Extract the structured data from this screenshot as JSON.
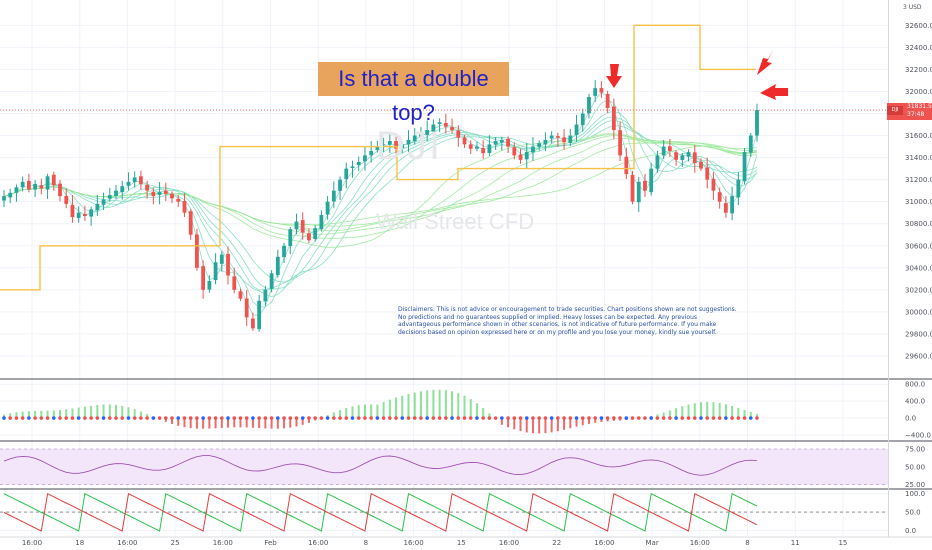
{
  "annotation": {
    "headline": "Is that a double top?"
  },
  "watermark": {
    "symbol": "DJI",
    "name": "Wall Street CFD"
  },
  "currency_label": "3 USD",
  "last_price": {
    "symbol": "DJI",
    "value": "31831.5",
    "countdown": "37:48",
    "color": "#ef5350"
  },
  "disclaimer": "Disclaimers: This is not advice or encouragement to trade securities. Chart positions shown are not suggestions. No predictions and no guarantees supplied or implied. Heavy losses can be expected. Any previous advantageous performance shown in other scenarios, is not indicative of future performance.  If you make decisions based on opinion expressed here or on my profile and you lose your money, kindly sue yourself.",
  "colors": {
    "up": "#26a69a",
    "down": "#ef5350",
    "step_line": "#f7c046",
    "callout_bg": "#e8a35c",
    "callout_text": "#1f23c8",
    "arrow": "#ef2a2a",
    "rsi_band": "#f3e6fb",
    "rsi_line": "#a052b0"
  },
  "chart_data": [
    {
      "type": "candlestick",
      "name": "price",
      "y_ticks": [
        29600,
        29800,
        30000,
        30200,
        30400,
        30600,
        30800,
        31000,
        31200,
        31400,
        31600,
        31800,
        32000,
        32200,
        32400,
        32600
      ],
      "y_tick_labels": [
        "29600.0",
        "29800.0",
        "30000.0",
        "30200.0",
        "30400.0",
        "30600.0",
        "30800.0",
        "31000.0",
        "31200.0",
        "31400.0",
        "31600.0",
        "31800.0",
        "32000.0",
        "32200.0",
        "32400.0",
        "32600.0"
      ],
      "ylim": [
        29400,
        32830
      ],
      "x_tick_labels": [
        "16:00",
        "18",
        "16:00",
        "25",
        "16:00",
        "Feb",
        "16:00",
        "8",
        "16:00",
        "15",
        "16:00",
        "22",
        "16:00",
        "Mar",
        "16:00",
        "8",
        "11",
        "15"
      ],
      "close_path": [
        31050,
        31080,
        31130,
        31180,
        31110,
        31160,
        31120,
        31230,
        31150,
        31050,
        30980,
        30860,
        30900,
        30870,
        30930,
        30980,
        31020,
        31060,
        31100,
        31140,
        31180,
        31220,
        31160,
        31100,
        31050,
        31090,
        31070,
        31030,
        31000,
        30900,
        30700,
        30400,
        30200,
        30280,
        30450,
        30520,
        30330,
        30200,
        30120,
        29950,
        29850,
        30100,
        30200,
        30350,
        30500,
        30600,
        30750,
        30820,
        30720,
        30650,
        30760,
        30880,
        31000,
        31100,
        31200,
        31300,
        31320,
        31360,
        31420,
        31460,
        31500,
        31520,
        31550,
        31480,
        31520,
        31560,
        31600,
        31620,
        31650,
        31700,
        31720,
        31680,
        31650,
        31580,
        31520,
        31480,
        31500,
        31440,
        31520,
        31550,
        31560,
        31500,
        31420,
        31380,
        31450,
        31500,
        31530,
        31560,
        31600,
        31580,
        31540,
        31600,
        31700,
        31800,
        31950,
        32030,
        31990,
        31850,
        31650,
        31420,
        31250,
        31000,
        31180,
        31100,
        31300,
        31420,
        31500,
        31460,
        31380,
        31420,
        31450,
        31350,
        31300,
        31200,
        31100,
        31000,
        30900,
        31050,
        31200,
        31450,
        31600,
        31831.5
      ],
      "close_path_note": "approximate closing prices read from the chart, chronological",
      "support_line_steps": [
        30200,
        30600,
        31500,
        31200,
        31300,
        32600,
        32200
      ],
      "double_top_peaks": [
        32030,
        31831.5
      ]
    },
    {
      "type": "histogram",
      "name": "momentum",
      "y_ticks": [
        800,
        400,
        0,
        -400
      ],
      "y_tick_labels": [
        "800.0",
        "400.0",
        "0.0",
        "−400.0"
      ],
      "ylim": [
        -520,
        900
      ]
    },
    {
      "type": "line",
      "name": "rsi",
      "y_ticks": [
        75,
        50,
        25
      ],
      "y_tick_labels": [
        "75.00",
        "50.00",
        "25.00"
      ],
      "ylim": [
        20,
        85
      ]
    },
    {
      "type": "line",
      "name": "stochastic",
      "y_ticks": [
        100,
        50,
        0
      ],
      "y_tick_labels": [
        "100.0",
        "50.0",
        "0.0"
      ],
      "ylim": [
        -15,
        110
      ]
    }
  ]
}
